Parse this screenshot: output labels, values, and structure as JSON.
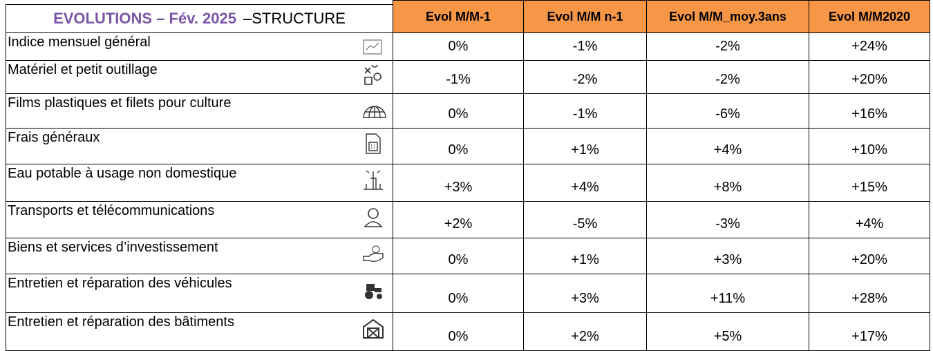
{
  "header": {
    "title": "EVOLUTIONS – Fév. 2025",
    "subtitle": "–STRUCTURE",
    "columns": [
      "Evol M/M-1",
      "Evol M/M n-1",
      "Evol M/M_moy.3ans",
      "Evol M/M2020"
    ]
  },
  "rows": [
    {
      "label": "Indice mensuel général",
      "values": [
        "0%",
        "-1%",
        "-2%",
        "+24%"
      ]
    },
    {
      "label": "Matériel et petit outillage",
      "values": [
        "-1%",
        "-2%",
        "-2%",
        "+20%"
      ]
    },
    {
      "label": "Films plastiques et filets pour culture",
      "values": [
        "0%",
        "-1%",
        "-6%",
        "+16%"
      ]
    },
    {
      "label": "Frais généraux",
      "values": [
        "0%",
        "+1%",
        "+4%",
        "+10%"
      ]
    },
    {
      "label": "Eau potable à  usage non domestique",
      "values": [
        "+3%",
        "+4%",
        "+8%",
        "+15%"
      ]
    },
    {
      "label": "Transports et télécommunications",
      "values": [
        "+2%",
        "-5%",
        "-3%",
        "+4%"
      ]
    },
    {
      "label": "Biens et services d’investissement",
      "values": [
        "0%",
        "+1%",
        "+3%",
        "+20%"
      ]
    },
    {
      "label": "Entretien et réparation des véhicules",
      "values": [
        "0%",
        "+3%",
        "+11%",
        "+28%"
      ]
    },
    {
      "label": "Entretien et réparation des bâtiments",
      "values": [
        "0%",
        "+2%",
        "+5%",
        "+17%"
      ]
    }
  ]
}
